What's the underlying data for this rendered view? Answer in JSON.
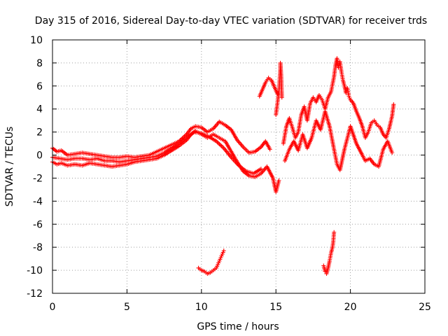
{
  "chart_data": {
    "type": "scatter",
    "title": "Day 315 of 2016, Sidereal Day-to-day VTEC variation (SDTVAR) for receiver trds",
    "xlabel": "GPS time / hours",
    "ylabel": "SDTVAR / TECUs",
    "xlim": [
      0,
      25
    ],
    "ylim": [
      -12,
      10
    ],
    "xticks": [
      "0",
      "5",
      "10",
      "15",
      "20",
      "25"
    ],
    "yticks": [
      "10",
      "8",
      "6",
      "4",
      "2",
      "0",
      "-2",
      "-4",
      "-6",
      "-8",
      "-10",
      "-12"
    ],
    "grid": true,
    "marker": "+",
    "color": "#ff0000",
    "series": [
      {
        "name": "main-band-upper",
        "x": [
          0.0,
          0.3,
          0.6,
          1.0,
          1.5,
          2.0,
          2.5,
          3.0,
          3.5,
          4.0,
          4.5,
          5.0,
          5.5,
          6.0,
          6.5,
          7.0,
          7.5,
          8.0,
          8.5,
          9.0,
          9.3,
          9.6,
          10.0,
          10.4,
          10.8,
          11.2,
          11.6,
          12.0,
          12.4,
          12.8,
          13.2,
          13.6,
          14.0,
          14.3,
          14.6
        ],
        "y": [
          0.6,
          0.3,
          0.4,
          0.0,
          0.1,
          0.2,
          0.1,
          0.0,
          -0.1,
          -0.2,
          -0.2,
          -0.1,
          -0.2,
          -0.1,
          0.0,
          0.3,
          0.6,
          0.9,
          1.2,
          1.8,
          2.3,
          2.5,
          2.4,
          2.0,
          2.3,
          2.9,
          2.6,
          2.2,
          1.3,
          0.7,
          0.2,
          0.3,
          0.7,
          1.2,
          0.5
        ]
      },
      {
        "name": "main-band-lower",
        "x": [
          0.0,
          0.3,
          0.6,
          1.0,
          1.5,
          2.0,
          2.5,
          3.0,
          3.5,
          4.0,
          4.5,
          5.0,
          5.5,
          6.0,
          6.5,
          7.0,
          7.5,
          8.0,
          8.5,
          9.0,
          9.3,
          9.6,
          10.0,
          10.4,
          10.8,
          11.2,
          11.6,
          12.0,
          12.4,
          12.8,
          13.2,
          13.6,
          14.0,
          14.4,
          14.8,
          15.0,
          15.2
        ],
        "y": [
          -0.6,
          -0.8,
          -0.7,
          -0.9,
          -0.8,
          -0.9,
          -0.7,
          -0.8,
          -0.9,
          -1.0,
          -0.9,
          -0.8,
          -0.6,
          -0.5,
          -0.4,
          -0.3,
          0.0,
          0.4,
          0.8,
          1.3,
          1.8,
          2.1,
          1.8,
          1.5,
          1.8,
          1.5,
          1.2,
          0.3,
          -0.6,
          -1.4,
          -1.8,
          -1.9,
          -1.6,
          -1.0,
          -2.0,
          -3.2,
          -2.2
        ]
      },
      {
        "name": "main-band-middle",
        "x": [
          0.0,
          0.5,
          1.0,
          1.5,
          2.0,
          2.5,
          3.0,
          3.5,
          4.0,
          4.5,
          5.0,
          5.5,
          6.0,
          6.5,
          7.0,
          7.5,
          8.0,
          8.5,
          9.0,
          9.5,
          10.0,
          10.5,
          11.0,
          11.5,
          12.0,
          12.5,
          13.0,
          13.5,
          14.0
        ],
        "y": [
          -0.2,
          -0.3,
          -0.4,
          -0.3,
          -0.3,
          -0.4,
          -0.3,
          -0.5,
          -0.5,
          -0.6,
          -0.5,
          -0.4,
          -0.3,
          -0.2,
          -0.1,
          0.2,
          0.6,
          1.0,
          1.5,
          2.0,
          1.9,
          1.6,
          1.2,
          0.6,
          -0.2,
          -0.9,
          -1.4,
          -1.6,
          -1.2
        ]
      },
      {
        "name": "hump-14h",
        "x": [
          13.9,
          14.1,
          14.3,
          14.5,
          14.7,
          14.9,
          15.1
        ],
        "y": [
          5.1,
          5.7,
          6.3,
          6.7,
          6.5,
          5.9,
          5.3
        ]
      },
      {
        "name": "spike-15h",
        "x": [
          15.0,
          15.1,
          15.2,
          15.25,
          15.3,
          15.3,
          15.35,
          15.4
        ],
        "y": [
          3.5,
          4.5,
          5.5,
          6.5,
          7.5,
          8.0,
          7.0,
          5.0
        ]
      },
      {
        "name": "late-cluster",
        "x": [
          15.5,
          15.7,
          15.9,
          16.1,
          16.3,
          16.5,
          16.7,
          16.9,
          17.1,
          17.3,
          17.5,
          17.7,
          17.9,
          18.1,
          18.3,
          18.5,
          18.7,
          18.9,
          19.0,
          19.1,
          19.2,
          19.3,
          19.4,
          19.5,
          19.6,
          19.7,
          19.8,
          19.9,
          20.0,
          20.2,
          20.4,
          20.6,
          20.8,
          21.0,
          21.2,
          21.4,
          21.6,
          21.8,
          22.0,
          22.2,
          22.4,
          22.6,
          22.8,
          22.9
        ],
        "y": [
          1.0,
          2.5,
          3.2,
          2.4,
          1.5,
          2.0,
          3.5,
          4.2,
          3.0,
          4.5,
          5.0,
          4.6,
          5.2,
          4.8,
          4.0,
          5.0,
          5.5,
          6.8,
          7.8,
          8.4,
          7.6,
          8.1,
          7.2,
          6.5,
          6.0,
          5.4,
          5.8,
          5.1,
          4.8,
          4.5,
          3.8,
          3.2,
          2.5,
          1.5,
          2.0,
          2.8,
          3.0,
          2.6,
          2.4,
          1.8,
          1.5,
          2.3,
          3.4,
          4.4
        ]
      },
      {
        "name": "late-lower",
        "x": [
          15.6,
          15.9,
          16.2,
          16.5,
          16.8,
          17.1,
          17.4,
          17.7,
          18.0,
          18.3,
          18.6,
          18.9,
          19.1,
          19.3,
          19.6,
          20.0,
          20.4,
          20.8,
          21.0,
          21.3,
          21.6,
          21.9,
          22.2,
          22.5,
          22.8
        ],
        "y": [
          -0.5,
          0.5,
          1.2,
          0.4,
          1.8,
          0.6,
          1.5,
          3.0,
          2.2,
          3.8,
          2.5,
          0.5,
          -0.8,
          -1.3,
          0.5,
          2.5,
          1.0,
          0.0,
          -0.5,
          -0.3,
          -0.8,
          -1.0,
          0.5,
          1.2,
          0.2
        ]
      },
      {
        "name": "low-cluster-10h",
        "x": [
          9.8,
          10.0,
          10.2,
          10.4,
          10.6,
          10.8,
          11.0,
          11.1,
          11.2,
          11.3,
          11.4,
          11.5
        ],
        "y": [
          -9.8,
          -10.0,
          -10.1,
          -10.3,
          -10.2,
          -10.0,
          -9.8,
          -9.5,
          -9.2,
          -8.9,
          -8.6,
          -8.3
        ]
      },
      {
        "name": "low-cluster-18h",
        "x": [
          18.2,
          18.3,
          18.4,
          18.5,
          18.6,
          18.7,
          18.8,
          18.85,
          18.9
        ],
        "y": [
          -9.6,
          -10.1,
          -10.3,
          -9.8,
          -9.2,
          -8.5,
          -8.0,
          -7.5,
          -6.7
        ]
      }
    ]
  }
}
